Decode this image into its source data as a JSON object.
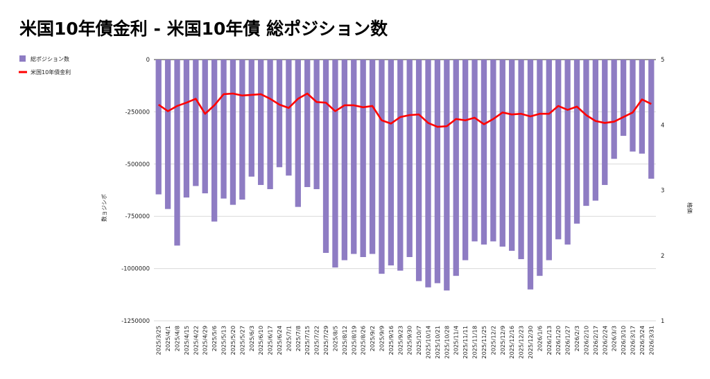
{
  "chart_data": {
    "type": "bar+line",
    "title": "米国10年債金利 - 米国10年債 総ポジション数",
    "categories": [
      "2025/3/25",
      "2025/4/1",
      "2025/4/8",
      "2025/4/15",
      "2025/4/22",
      "2025/4/29",
      "2025/5/6",
      "2025/5/13",
      "2025/5/20",
      "2025/5/27",
      "2025/6/3",
      "2025/6/10",
      "2025/6/17",
      "2025/6/24",
      "2025/7/1",
      "2025/7/8",
      "2025/7/15",
      "2025/7/22",
      "2025/7/29",
      "2025/8/5",
      "2025/8/12",
      "2025/8/19",
      "2025/8/26",
      "2025/9/2",
      "2025/9/9",
      "2025/9/16",
      "2025/9/23",
      "2025/9/30",
      "2025/10/7",
      "2025/10/14",
      "2025/10/21",
      "2025/10/28",
      "2025/11/4",
      "2025/11/11",
      "2025/11/18",
      "2025/11/25",
      "2025/12/2",
      "2025/12/9",
      "2025/12/16",
      "2025/12/23",
      "2025/12/30",
      "2026/1/6",
      "2026/1/13",
      "2026/1/20",
      "2026/1/27",
      "2026/2/3",
      "2026/2/10",
      "2026/2/17",
      "2026/2/24",
      "2026/3/3",
      "2026/3/10",
      "2026/3/17",
      "2026/3/24",
      "2026/3/31"
    ],
    "series": [
      {
        "name": "総ポジション数",
        "type": "bar",
        "axis": "left",
        "color": "#8e7cc3",
        "values": [
          -645000,
          -715000,
          -890000,
          -660000,
          -605000,
          -640000,
          -775000,
          -665000,
          -695000,
          -670000,
          -560000,
          -600000,
          -620000,
          -515000,
          -555000,
          -705000,
          -610000,
          -620000,
          -925000,
          -995000,
          -960000,
          -930000,
          -945000,
          -930000,
          -1025000,
          -985000,
          -1010000,
          -945000,
          -1060000,
          -1090000,
          -1070000,
          -1105000,
          -1035000,
          -960000,
          -870000,
          -885000,
          -870000,
          -895000,
          -915000,
          -955000,
          -1100000,
          -1035000,
          -960000,
          -860000,
          -885000,
          -785000,
          -700000,
          -675000,
          -600000,
          -475000,
          -365000,
          -440000,
          -450000,
          -570000
        ]
      },
      {
        "name": "米国10年債金利",
        "type": "line",
        "axis": "right",
        "color": "#ff0000",
        "values": [
          4.31,
          4.21,
          4.29,
          4.34,
          4.4,
          4.17,
          4.3,
          4.47,
          4.48,
          4.45,
          4.46,
          4.47,
          4.4,
          4.31,
          4.26,
          4.4,
          4.48,
          4.35,
          4.34,
          4.21,
          4.3,
          4.3,
          4.27,
          4.29,
          4.07,
          4.02,
          4.12,
          4.15,
          4.16,
          4.03,
          3.97,
          3.98,
          4.09,
          4.07,
          4.11,
          4.01,
          4.09,
          4.19,
          4.16,
          4.17,
          4.13,
          4.17,
          4.17,
          4.29,
          4.23,
          4.28,
          4.15,
          4.06,
          4.03,
          4.05,
          4.12,
          4.19,
          4.39,
          4.32
        ]
      }
    ],
    "y_left": {
      "label": "数ョジシポ",
      "range": [
        -1250000,
        0
      ],
      "ticks": [
        0,
        -250000,
        -500000,
        -750000,
        -1000000,
        -1250000
      ]
    },
    "y_right": {
      "label": "格価",
      "range": [
        1,
        5
      ],
      "ticks": [
        5,
        4,
        3,
        2,
        1
      ]
    },
    "legend": {
      "placement": "top-left",
      "items": [
        "総ポジション数",
        "米国10年債金利"
      ]
    },
    "grid": true
  }
}
